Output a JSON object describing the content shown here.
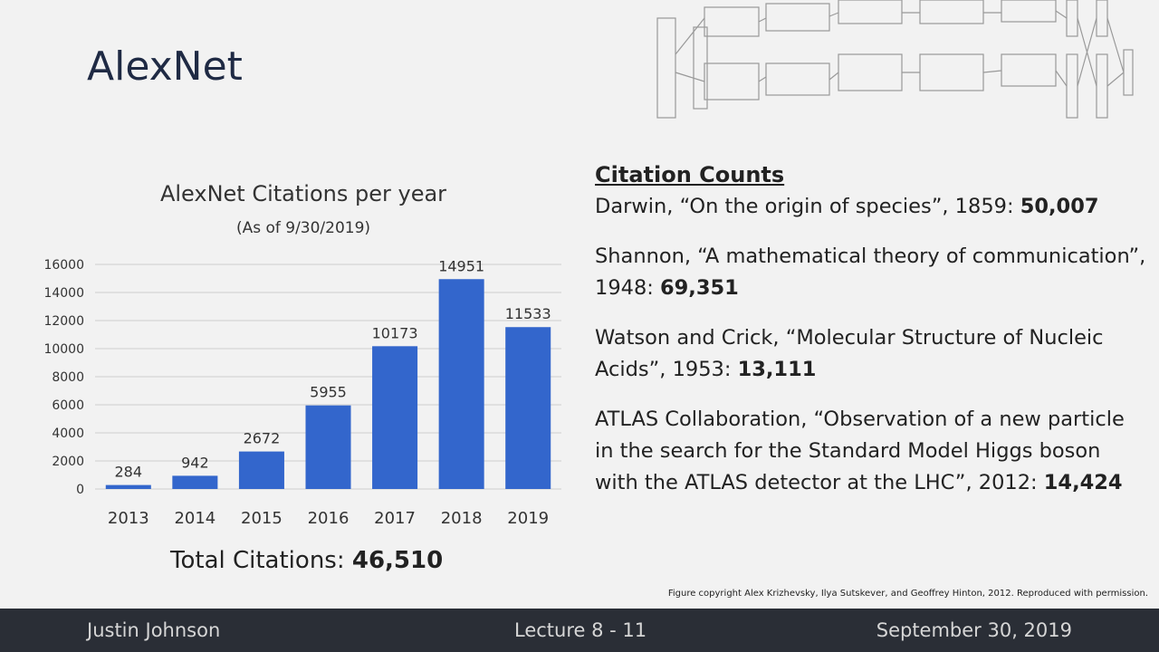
{
  "slide": {
    "title": "AlexNet"
  },
  "chart_data": {
    "type": "bar",
    "title": "AlexNet Citations per year",
    "subtitle": "(As of 9/30/2019)",
    "categories": [
      "2013",
      "2014",
      "2015",
      "2016",
      "2017",
      "2018",
      "2019"
    ],
    "values": [
      284,
      942,
      2672,
      5955,
      10173,
      14951,
      11533
    ],
    "yticks": [
      "0",
      "2000",
      "4000",
      "6000",
      "8000",
      "10000",
      "12000",
      "14000",
      "16000"
    ],
    "ylim": [
      0,
      16000
    ],
    "grid": true,
    "bar_color": "#3366cc"
  },
  "total": {
    "label": "Total Citations: ",
    "value": "46,510"
  },
  "citations": {
    "heading": "Citation Counts",
    "entries": [
      {
        "text": "Darwin, “On the origin of species”, 1859: ",
        "count": "50,007"
      },
      {
        "text": "Shannon, “A mathematical theory of communication”, 1948: ",
        "count": "69,351"
      },
      {
        "text": "Watson and Crick, “Molecular Structure of Nucleic Acids”, 1953: ",
        "count": "13,111"
      },
      {
        "text": "ATLAS Collaboration, “Observation of a new particle in the search for the Standard Model Higgs boson with the ATLAS detector at the LHC”, 2012: ",
        "count": "14,424"
      }
    ]
  },
  "figure_credit": "Figure copyright Alex Krizhevsky, Ilya Sutskever, and Geoffrey Hinton, 2012. Reproduced with permission.",
  "footer": {
    "left": "Justin Johnson",
    "center": "Lecture 8 - 11",
    "right": "September 30, 2019"
  }
}
